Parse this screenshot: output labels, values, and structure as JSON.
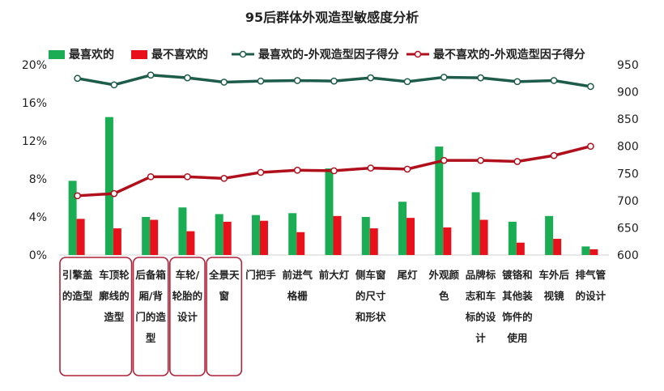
{
  "chart_data": {
    "type": "bar",
    "title": "95后群体外观造型敏感度分析",
    "categories": [
      [
        "引擎盖",
        "的造型"
      ],
      [
        "车顶轮",
        "廓线的",
        "造型"
      ],
      [
        "后备箱",
        "厢/背",
        "门的造",
        "型"
      ],
      [
        "车轮/",
        "轮胎的",
        "设计"
      ],
      [
        "全景天",
        "窗"
      ],
      [
        "门把手"
      ],
      [
        "前进气",
        "格栅"
      ],
      [
        "前大灯"
      ],
      [
        "侧车窗",
        "的尺寸",
        "和形状"
      ],
      [
        "尾灯"
      ],
      [
        "外观颜",
        "色"
      ],
      [
        "品牌标",
        "志和车",
        "标的设",
        "计"
      ],
      [
        "镀铬和",
        "其他装",
        "饰件的",
        "使用"
      ],
      [
        "车外后",
        "视镜"
      ],
      [
        "排气管",
        "的设计"
      ]
    ],
    "left_axis": {
      "ticks": [
        "0%",
        "4%",
        "8%",
        "12%",
        "16%",
        "20%"
      ],
      "ylim": [
        0,
        20
      ]
    },
    "right_axis": {
      "ticks": [
        "600",
        "650",
        "700",
        "750",
        "800",
        "850",
        "900",
        "950"
      ],
      "ylim": [
        600,
        950
      ]
    },
    "series": [
      {
        "name": "最喜欢的",
        "kind": "bar",
        "axis": "left",
        "color": "#1aad54",
        "values": [
          7.8,
          14.5,
          4.0,
          5.0,
          4.3,
          4.2,
          4.4,
          9.1,
          4.0,
          5.6,
          11.4,
          6.6,
          3.5,
          4.1,
          0.9
        ]
      },
      {
        "name": "最不喜欢的",
        "kind": "bar",
        "axis": "left",
        "color": "#e8111b",
        "values": [
          3.8,
          2.8,
          3.7,
          2.5,
          3.5,
          3.6,
          2.4,
          4.1,
          2.8,
          3.9,
          2.9,
          3.7,
          1.3,
          1.7,
          0.6
        ]
      },
      {
        "name": "最喜欢的-外观造型因子得分",
        "kind": "line",
        "axis": "right",
        "color": "#1d5b4a",
        "values": [
          925,
          913,
          931,
          926,
          918,
          920,
          921,
          920,
          926,
          919,
          927,
          926,
          919,
          921,
          910
        ]
      },
      {
        "name": "最不喜欢的-外观造型因子得分",
        "kind": "line",
        "axis": "right",
        "color": "#b00f1c",
        "values": [
          709,
          713,
          744,
          744,
          741,
          752,
          756,
          755,
          760,
          758,
          774,
          774,
          772,
          783,
          800
        ]
      }
    ],
    "legend_position": "top",
    "highlight_groups": [
      [
        0,
        1
      ],
      [
        2
      ],
      [
        3
      ],
      [
        4
      ]
    ],
    "highlight_color": "#b0213a"
  }
}
